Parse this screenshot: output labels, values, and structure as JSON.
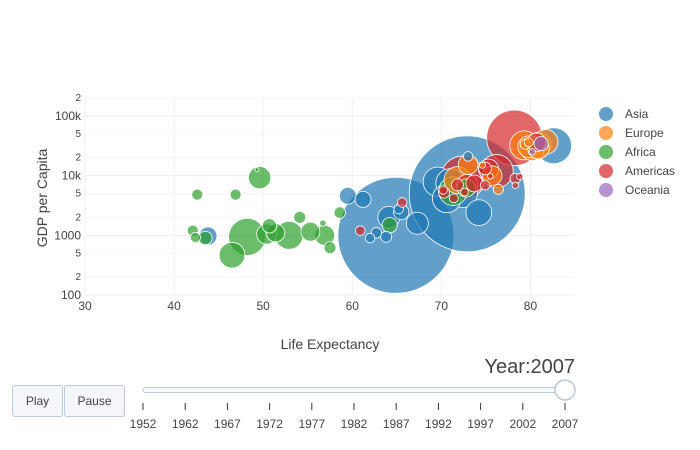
{
  "chart_data": {
    "type": "scatter",
    "xlabel": "Life Expectancy",
    "ylabel": "GDP per Capita",
    "x_range": [
      30,
      85
    ],
    "y_range": [
      100,
      200000
    ],
    "y_scale": "log",
    "x_ticks": [
      30,
      40,
      50,
      60,
      70,
      80
    ],
    "y_major_ticks": [
      {
        "v": 100,
        "label": "100"
      },
      {
        "v": 1000,
        "label": "1000"
      },
      {
        "v": 10000,
        "label": "10k"
      },
      {
        "v": 100000,
        "label": "100k"
      }
    ],
    "y_minor_ticks": [
      {
        "v": 200,
        "label": "2"
      },
      {
        "v": 500,
        "label": "5"
      },
      {
        "v": 2000,
        "label": "2"
      },
      {
        "v": 5000,
        "label": "5"
      },
      {
        "v": 20000,
        "label": "2"
      },
      {
        "v": 50000,
        "label": "5"
      },
      {
        "v": 200000,
        "label": "2"
      }
    ],
    "grid": true,
    "legend_position": "right",
    "series": [
      {
        "name": "Asia",
        "color": "#1f77b4",
        "points": [
          [
            64.9,
            1000,
            1319
          ],
          [
            72.9,
            4960,
            1318
          ],
          [
            43.8,
            975,
            32
          ],
          [
            61.2,
            4000,
            25
          ],
          [
            70.6,
            4150,
            80
          ],
          [
            71.0,
            7500,
            81
          ],
          [
            72.4,
            5200,
            87
          ],
          [
            69.6,
            7900,
            84
          ],
          [
            74.2,
            2400,
            65
          ],
          [
            82.6,
            31700,
            127
          ],
          [
            59.5,
            4600,
            28
          ],
          [
            67.3,
            1590,
            48
          ],
          [
            65.5,
            2450,
            23
          ],
          [
            64.1,
            2000,
            47
          ],
          [
            73.0,
            21000,
            9
          ],
          [
            62.7,
            1100,
            11
          ],
          [
            63.8,
            944,
            12
          ],
          [
            65.2,
            2750,
            9
          ],
          [
            62.0,
            900,
            9
          ]
        ]
      },
      {
        "name": "Europe",
        "color": "#ff7f0e",
        "points": [
          [
            79.8,
            36100,
            8
          ],
          [
            79.4,
            33700,
            10
          ],
          [
            81.7,
            36800,
            60
          ],
          [
            79.3,
            32200,
            82
          ],
          [
            80.2,
            28600,
            58
          ],
          [
            80.9,
            33000,
            61
          ],
          [
            80.9,
            28800,
            45
          ],
          [
            79.8,
            30500,
            46
          ],
          [
            75.7,
            10000,
            38
          ],
          [
            76.4,
            5900,
            10
          ],
          [
            71.8,
            8450,
            71
          ],
          [
            73.0,
            15300,
            38
          ],
          [
            74.6,
            15000,
            4
          ]
        ]
      },
      {
        "name": "Africa",
        "color": "#2ca02c",
        "points": [
          [
            46.9,
            4800,
            12
          ],
          [
            52.9,
            1000,
            77
          ],
          [
            46.5,
            465,
            65
          ],
          [
            72.8,
            6200,
            33
          ],
          [
            71.3,
            5500,
            80
          ],
          [
            43.5,
            900,
            18
          ],
          [
            49.3,
            12600,
            1.5
          ],
          [
            50.7,
            1440,
            20
          ],
          [
            58.6,
            2400,
            13
          ],
          [
            54.1,
            2000,
            14
          ],
          [
            55.3,
            1150,
            35
          ],
          [
            48.2,
            940,
            135
          ],
          [
            64.2,
            1480,
            23
          ],
          [
            49.6,
            9270,
            49
          ],
          [
            51.4,
            1100,
            33
          ],
          [
            42.6,
            4800,
            12
          ],
          [
            56.9,
            1000,
            39
          ],
          [
            42.4,
            920,
            10
          ],
          [
            42.1,
            1200,
            12
          ],
          [
            50.4,
            1050,
            40
          ],
          [
            57.5,
            620,
            14
          ],
          [
            56.7,
            1600,
            4
          ]
        ]
      },
      {
        "name": "Americas",
        "color": "#d62728",
        "points": [
          [
            78.2,
            42950,
            301
          ],
          [
            80.7,
            36300,
            33
          ],
          [
            76.2,
            11900,
            108
          ],
          [
            72.4,
            9100,
            190
          ],
          [
            75.3,
            12800,
            40
          ],
          [
            72.9,
            7000,
            44
          ],
          [
            74.9,
            13200,
            16
          ],
          [
            78.3,
            8900,
            11
          ],
          [
            78.8,
            9650,
            4
          ],
          [
            73.7,
            7400,
            28
          ],
          [
            74.9,
            6900,
            9
          ],
          [
            71.8,
            7000,
            14
          ],
          [
            70.3,
            5200,
            12
          ],
          [
            72.6,
            5300,
            6
          ],
          [
            75.5,
            9800,
            3
          ],
          [
            78.3,
            6870,
            4
          ],
          [
            60.9,
            1200,
            9
          ],
          [
            65.6,
            3550,
            9
          ],
          [
            71.4,
            4170,
            8
          ],
          [
            70.2,
            5750,
            7
          ]
        ]
      },
      {
        "name": "Oceania",
        "color": "#9467bd",
        "points": [
          [
            81.2,
            34400,
            20
          ],
          [
            80.2,
            25200,
            4
          ]
        ]
      }
    ],
    "slider": {
      "prefix": "Year:",
      "current": "2007",
      "steps": [
        "1952",
        "1962",
        "1967",
        "1972",
        "1977",
        "1982",
        "1987",
        "1992",
        "1997",
        "2002",
        "2007"
      ]
    }
  },
  "buttons": {
    "play": "Play",
    "pause": "Pause"
  }
}
